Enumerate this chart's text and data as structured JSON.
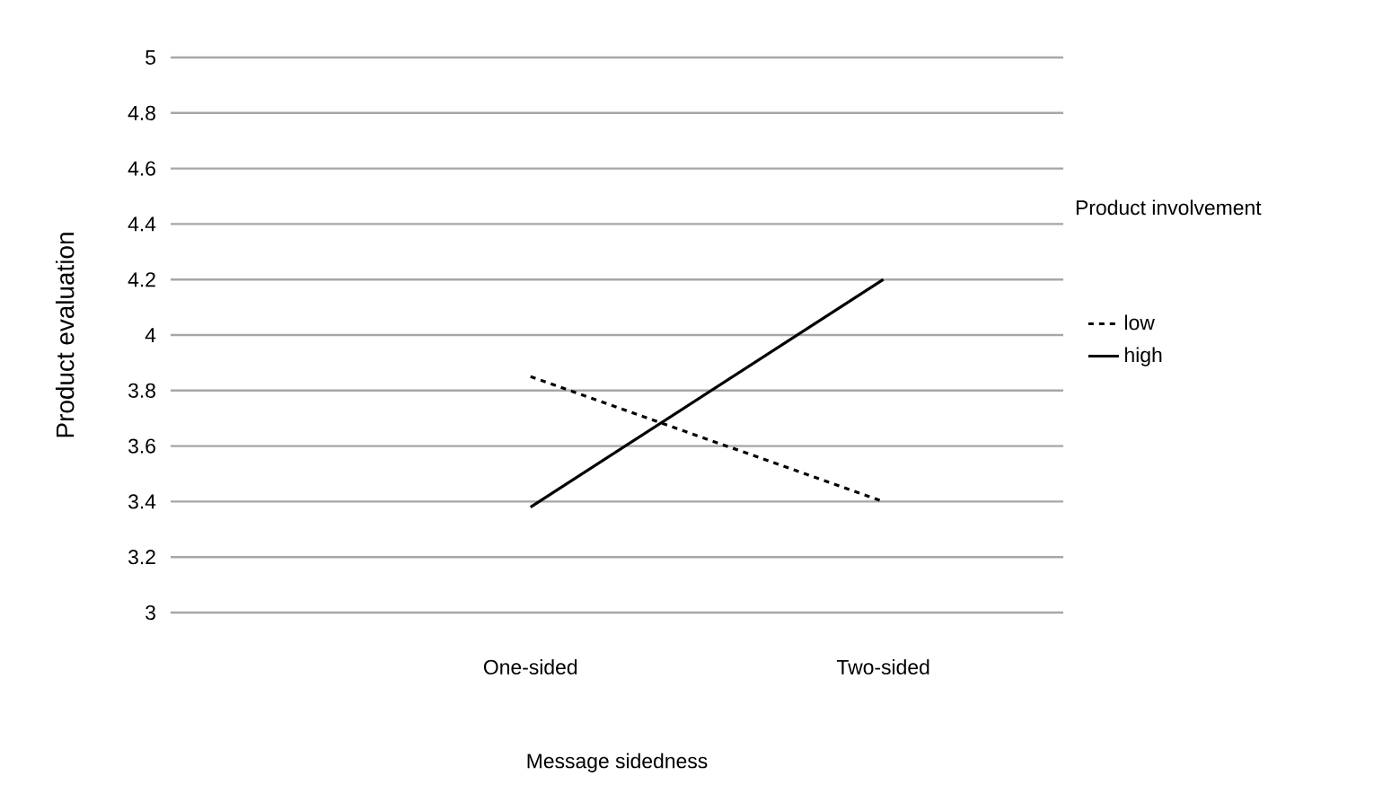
{
  "chart_data": {
    "type": "line",
    "xlabel": "Message sidedness",
    "ylabel": "Product evaluation",
    "legend_title": "Product involvement",
    "categories": [
      "One-sided",
      "Two-sided"
    ],
    "series": [
      {
        "name": "low",
        "color": "#000000",
        "line_style": "dashed",
        "values": [
          3.85,
          3.4
        ]
      },
      {
        "name": "high",
        "color": "#000000",
        "line_style": "solid",
        "values": [
          3.38,
          4.2
        ]
      }
    ],
    "ylim": [
      3,
      5
    ],
    "yticks": [
      3,
      3.2,
      3.4,
      3.6,
      3.8,
      4,
      4.2,
      4.4,
      4.6,
      4.8,
      5
    ],
    "grid": "y",
    "legend": "right",
    "marker": "none"
  }
}
